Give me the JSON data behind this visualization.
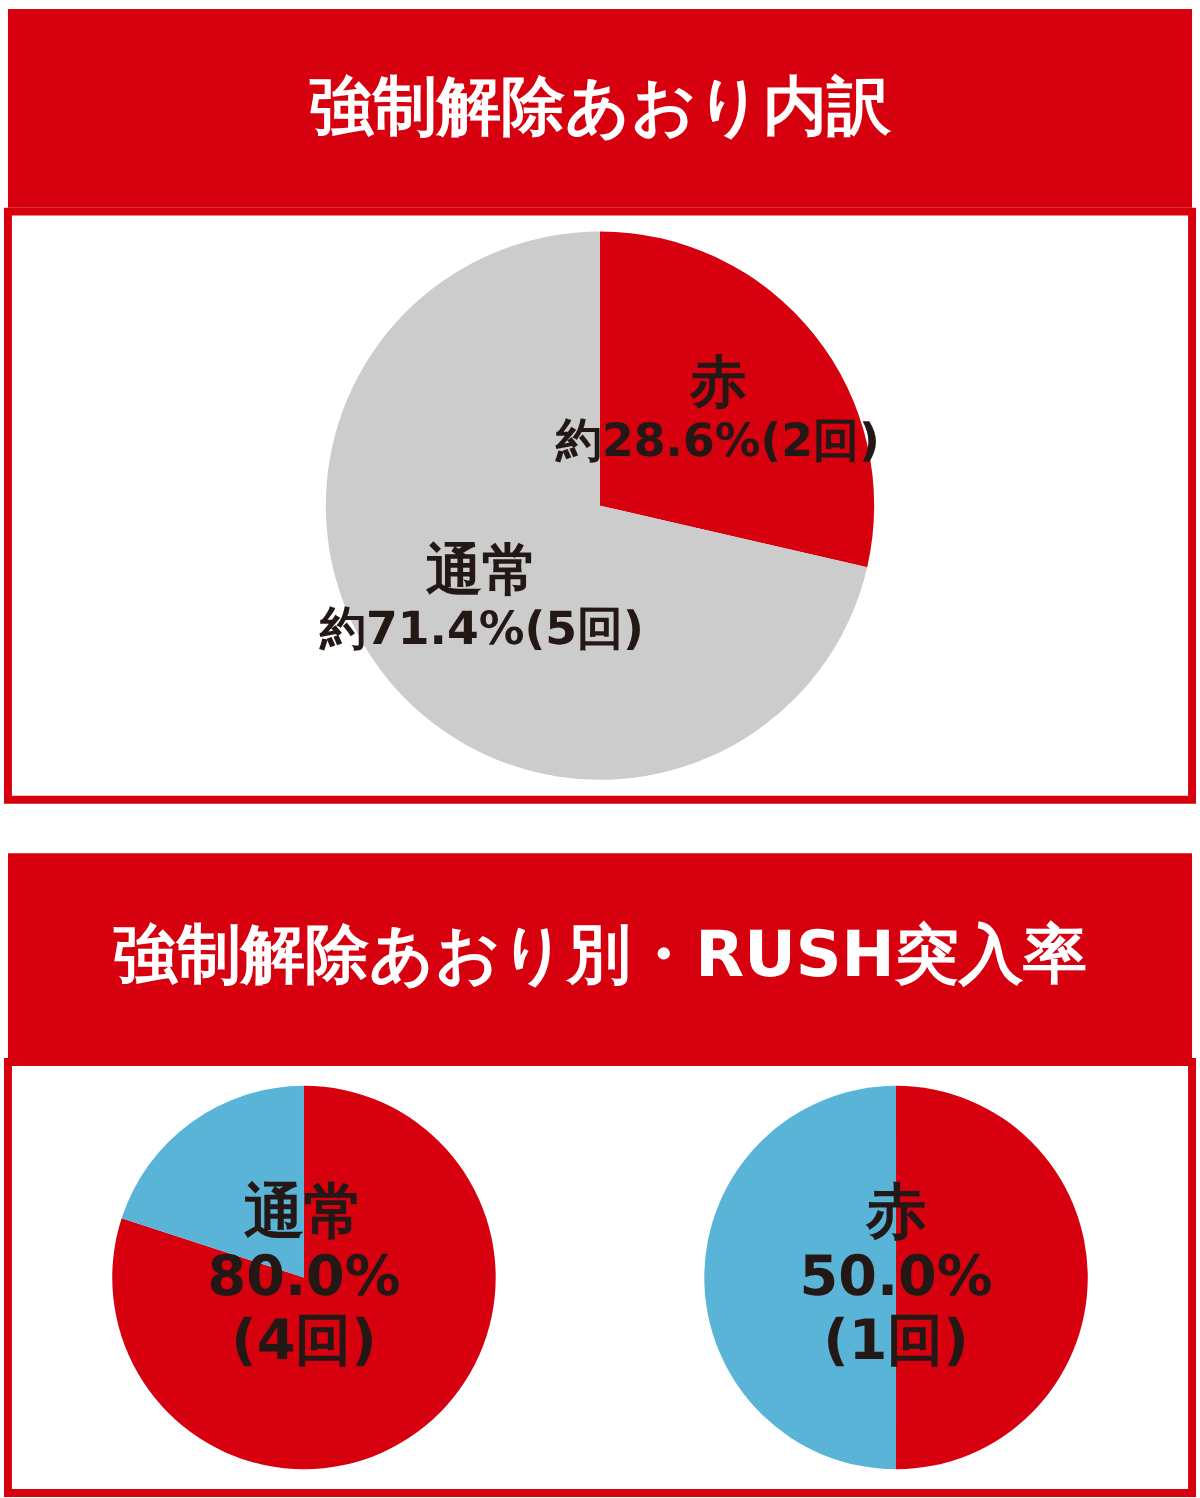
{
  "chart_data": [
    {
      "type": "pie",
      "title": "強制解除あおり内訳",
      "categories": [
        "赤",
        "通常"
      ],
      "values": [
        28.6,
        71.4
      ],
      "colors": [
        "#d7000f",
        "#cccccc"
      ],
      "value_labels": [
        "約28.6%(2回)",
        "約71.4%(5回)"
      ]
    },
    {
      "type": "pie",
      "title": "強制解除あおり別・RUSH突入率",
      "categories": [
        "通常",
        null
      ],
      "values": [
        80.0,
        20.0
      ],
      "colors": [
        "#d7000f",
        "#5ab4d8"
      ],
      "value_labels": [
        "80.0%\n(4回)",
        null
      ]
    },
    {
      "type": "pie",
      "categories": [
        "赤",
        null
      ],
      "values": [
        50.0,
        50.0
      ],
      "colors": [
        "#d7000f",
        "#5ab4d8"
      ],
      "value_labels": [
        "50.0%\n(1回)",
        null
      ]
    }
  ]
}
